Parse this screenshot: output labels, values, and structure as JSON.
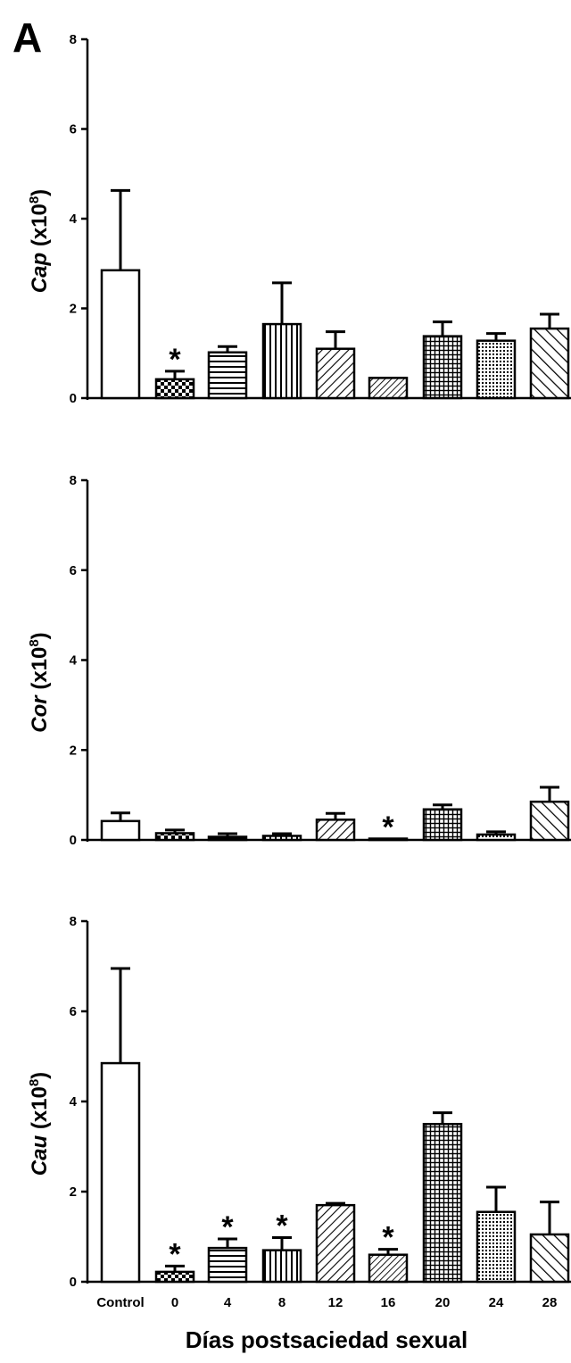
{
  "panel_label": "A",
  "x_axis_label": "Días postsaciedad sexual",
  "chart_data": [
    {
      "type": "bar",
      "ylabel_italic": "Cap",
      "ylabel_suffix": " (x10",
      "ylabel_exp": "8",
      "ylabel_close": ")",
      "ylim": [
        0,
        8
      ],
      "yticks": [
        "0",
        "2",
        "4",
        "6",
        "8"
      ],
      "categories": [
        "Control",
        "0",
        "4",
        "8",
        "12",
        "16",
        "20",
        "24",
        "28"
      ],
      "values": [
        2.85,
        0.42,
        1.02,
        1.65,
        1.1,
        0.45,
        1.38,
        1.28,
        1.55
      ],
      "errors": [
        1.78,
        0.18,
        0.13,
        0.92,
        0.38,
        0.0,
        0.32,
        0.16,
        0.32
      ],
      "significant": [
        false,
        true,
        false,
        false,
        false,
        false,
        false,
        false,
        false
      ],
      "significance_marker": "*"
    },
    {
      "type": "bar",
      "ylabel_italic": "Cor",
      "ylabel_suffix": " (x10",
      "ylabel_exp": "8",
      "ylabel_close": ")",
      "ylim": [
        0,
        8
      ],
      "yticks": [
        "0",
        "2",
        "4",
        "6",
        "8"
      ],
      "categories": [
        "Control",
        "0",
        "4",
        "8",
        "12",
        "16",
        "20",
        "24",
        "28"
      ],
      "values": [
        0.42,
        0.15,
        0.07,
        0.09,
        0.45,
        0.02,
        0.68,
        0.12,
        0.85
      ],
      "errors": [
        0.18,
        0.07,
        0.07,
        0.05,
        0.14,
        0.0,
        0.1,
        0.06,
        0.32
      ],
      "significant": [
        false,
        false,
        false,
        false,
        false,
        true,
        false,
        false,
        false
      ],
      "significance_marker": "*"
    },
    {
      "type": "bar",
      "ylabel_italic": "Cau",
      "ylabel_suffix": " (x10",
      "ylabel_exp": "8",
      "ylabel_close": ")",
      "ylim": [
        0,
        8
      ],
      "yticks": [
        "0",
        "2",
        "4",
        "6",
        "8"
      ],
      "categories": [
        "Control",
        "0",
        "4",
        "8",
        "12",
        "16",
        "20",
        "24",
        "28"
      ],
      "values": [
        4.85,
        0.22,
        0.75,
        0.7,
        1.7,
        0.6,
        3.5,
        1.55,
        1.05
      ],
      "errors": [
        2.1,
        0.13,
        0.2,
        0.28,
        0.04,
        0.12,
        0.25,
        0.55,
        0.72
      ],
      "significant": [
        false,
        true,
        true,
        true,
        false,
        true,
        false,
        false,
        false
      ],
      "significance_marker": "*"
    }
  ],
  "patterns": [
    "none",
    "checker",
    "hlines",
    "vlines",
    "diag-right",
    "diag-right-dense",
    "grid",
    "dots",
    "diag-left"
  ]
}
